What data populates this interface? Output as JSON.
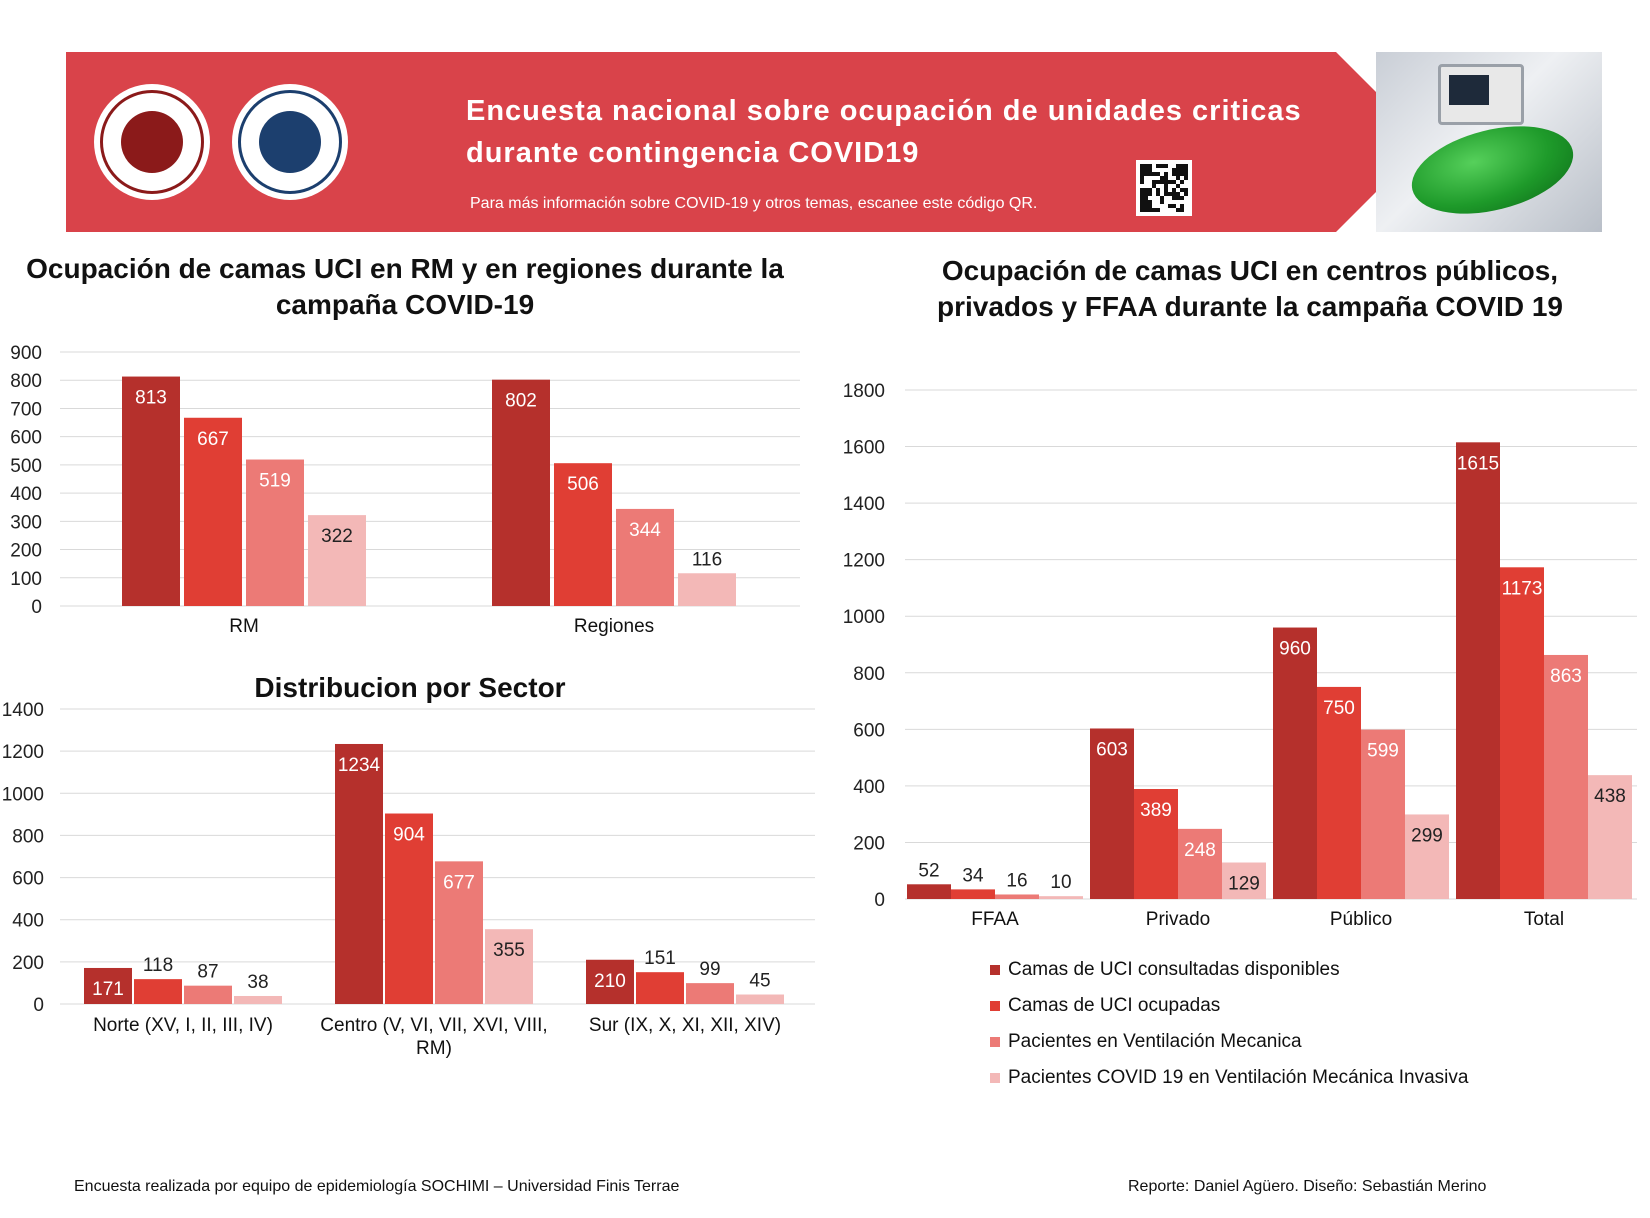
{
  "banner": {
    "title_line1": "Encuesta nacional sobre ocupación de unidades criticas",
    "title_line2": "durante contingencia COVID19",
    "note": "Para más información sobre COVID-19 y otros temas, escanee este código QR.",
    "color": "#d9434a"
  },
  "series_names": [
    "Camas de UCI consultadas disponibles",
    "Camas de UCI ocupadas",
    "Pacientes en Ventilación Mecanica",
    "Pacientes COVID 19 en Ventilación Mecánica Invasiva"
  ],
  "series_colors": [
    "#b5302c",
    "#e03e34",
    "#ec7a76",
    "#f3b8b7"
  ],
  "chart_data": [
    {
      "type": "bar",
      "title": "Ocupación de camas UCI en RM y en regiones durante la campaña COVID-19",
      "categories": [
        "RM",
        "Regiones"
      ],
      "series": [
        {
          "name": "Camas de UCI consultadas disponibles",
          "values": [
            813,
            802
          ]
        },
        {
          "name": "Camas de UCI ocupadas",
          "values": [
            667,
            506
          ]
        },
        {
          "name": "Pacientes en Ventilación Mecanica",
          "values": [
            519,
            344
          ]
        },
        {
          "name": "Pacientes COVID 19 en Ventilación Mecánica Invasiva",
          "values": [
            322,
            116
          ]
        }
      ],
      "ylim": [
        0,
        900
      ],
      "yticks": [
        0,
        100,
        200,
        300,
        400,
        500,
        600,
        700,
        800,
        900
      ],
      "grid": true
    },
    {
      "type": "bar",
      "title": "Distribucion por Sector",
      "categories": [
        "Norte (XV, I, II, III, IV)",
        "Centro (V, VI, VII, XVI, VIII, RM)",
        "Sur (IX, X, XI, XII, XIV)"
      ],
      "series": [
        {
          "name": "Camas de UCI consultadas disponibles",
          "values": [
            171,
            1234,
            210
          ]
        },
        {
          "name": "Camas de UCI ocupadas",
          "values": [
            118,
            904,
            151
          ]
        },
        {
          "name": "Pacientes en Ventilación Mecanica",
          "values": [
            87,
            677,
            99
          ]
        },
        {
          "name": "Pacientes COVID 19 en Ventilación Mecánica Invasiva",
          "values": [
            38,
            355,
            45
          ]
        }
      ],
      "ylim": [
        0,
        1400
      ],
      "yticks": [
        0,
        200,
        400,
        600,
        800,
        1000,
        1200,
        1400
      ],
      "grid": true
    },
    {
      "type": "bar",
      "title": "Ocupación de camas UCI en centros públicos, privados y FFAA durante la campaña COVID 19",
      "categories": [
        "FFAA",
        "Privado",
        "Público",
        "Total"
      ],
      "series": [
        {
          "name": "Camas de UCI consultadas disponibles",
          "values": [
            52,
            603,
            960,
            1615
          ]
        },
        {
          "name": "Camas de UCI ocupadas",
          "values": [
            34,
            389,
            750,
            1173
          ]
        },
        {
          "name": "Pacientes en Ventilación Mecanica",
          "values": [
            16,
            248,
            599,
            863
          ]
        },
        {
          "name": "Pacientes COVID 19 en Ventilación Mecánica Invasiva",
          "values": [
            10,
            129,
            299,
            438
          ]
        }
      ],
      "ylim": [
        0,
        1800
      ],
      "yticks": [
        0,
        200,
        400,
        600,
        800,
        1000,
        1200,
        1400,
        1600,
        1800
      ],
      "grid": true,
      "legend": "bottom"
    }
  ],
  "footer": {
    "left": "Encuesta realizada por equipo de epidemiología SOCHIMI – Universidad Finis Terrae",
    "right": "Reporte: Daniel Agüero. Diseño: Sebastián Merino"
  }
}
